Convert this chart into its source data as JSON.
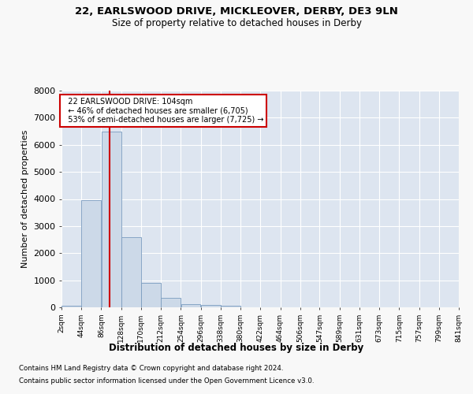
{
  "title_line1": "22, EARLSWOOD DRIVE, MICKLEOVER, DERBY, DE3 9LN",
  "title_line2": "Size of property relative to detached houses in Derby",
  "xlabel": "Distribution of detached houses by size in Derby",
  "ylabel": "Number of detached properties",
  "annotation_line1": "22 EARLSWOOD DRIVE: 104sqm",
  "annotation_line2": "← 46% of detached houses are smaller (6,705)",
  "annotation_line3": "53% of semi-detached houses are larger (7,725) →",
  "property_size": 104,
  "footer_line1": "Contains HM Land Registry data © Crown copyright and database right 2024.",
  "footer_line2": "Contains public sector information licensed under the Open Government Licence v3.0.",
  "bar_color": "#ccd9e8",
  "bar_edge_color": "#7a9cbf",
  "marker_color": "#cc0000",
  "background_color": "#dde5f0",
  "annotation_box_color": "#ffffff",
  "annotation_border_color": "#cc0000",
  "grid_color": "#ffffff",
  "fig_background": "#f8f8f8",
  "bin_edges": [
    2,
    44,
    86,
    128,
    170,
    212,
    254,
    296,
    338,
    380,
    422,
    464,
    506,
    547,
    589,
    631,
    673,
    715,
    757,
    799,
    841
  ],
  "bin_labels": [
    "2sqm",
    "44sqm",
    "86sqm",
    "128sqm",
    "170sqm",
    "212sqm",
    "254sqm",
    "296sqm",
    "338sqm",
    "380sqm",
    "422sqm",
    "464sqm",
    "506sqm",
    "547sqm",
    "589sqm",
    "631sqm",
    "673sqm",
    "715sqm",
    "757sqm",
    "799sqm",
    "841sqm"
  ],
  "bar_heights": [
    50,
    3950,
    6500,
    2600,
    900,
    350,
    120,
    100,
    70,
    0,
    0,
    0,
    0,
    0,
    0,
    0,
    0,
    0,
    0,
    0
  ],
  "ylim": [
    0,
    8000
  ],
  "yticks": [
    0,
    1000,
    2000,
    3000,
    4000,
    5000,
    6000,
    7000,
    8000
  ]
}
